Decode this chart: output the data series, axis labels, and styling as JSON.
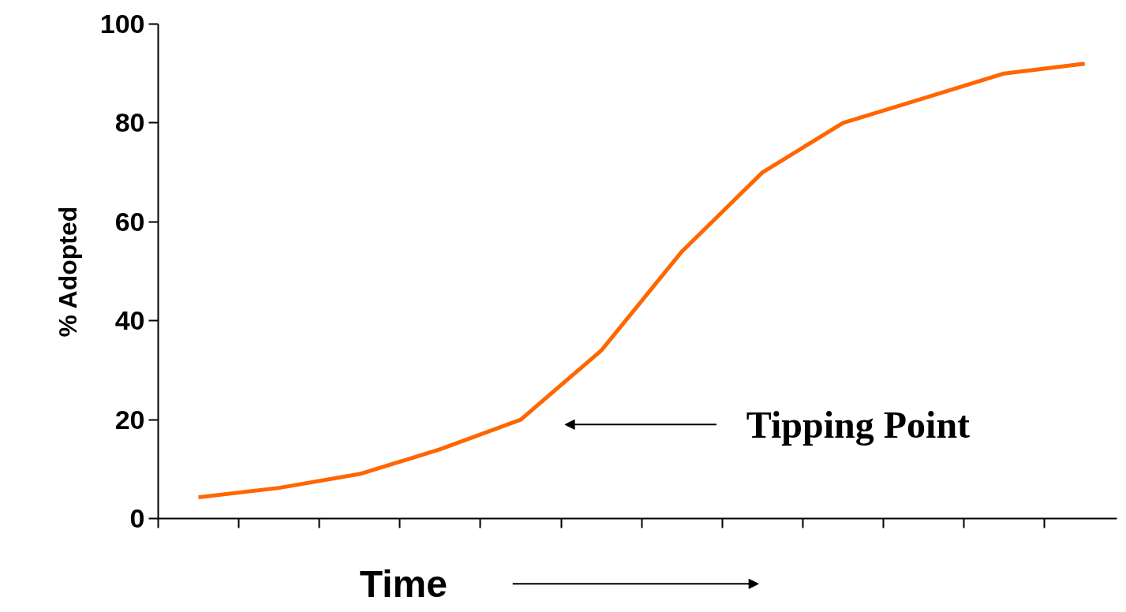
{
  "chart_data": {
    "type": "line",
    "xlabel": "Time",
    "ylabel": "% Adopted",
    "categories": [
      null,
      null,
      null,
      null,
      null,
      null,
      null,
      null,
      null,
      null,
      null,
      null
    ],
    "series": [
      {
        "color": "#ff6600",
        "values": [
          4.3,
          6.2,
          9,
          14,
          20,
          34,
          54,
          70,
          80,
          85,
          90,
          92
        ]
      }
    ],
    "ylim": [
      0,
      100
    ],
    "yticks": [
      0,
      20,
      40,
      60,
      80,
      100
    ],
    "grid": false,
    "tick_labels": "y",
    "marker": "none",
    "line_style": "solid",
    "annotations": [
      "Tipping Point"
    ]
  }
}
